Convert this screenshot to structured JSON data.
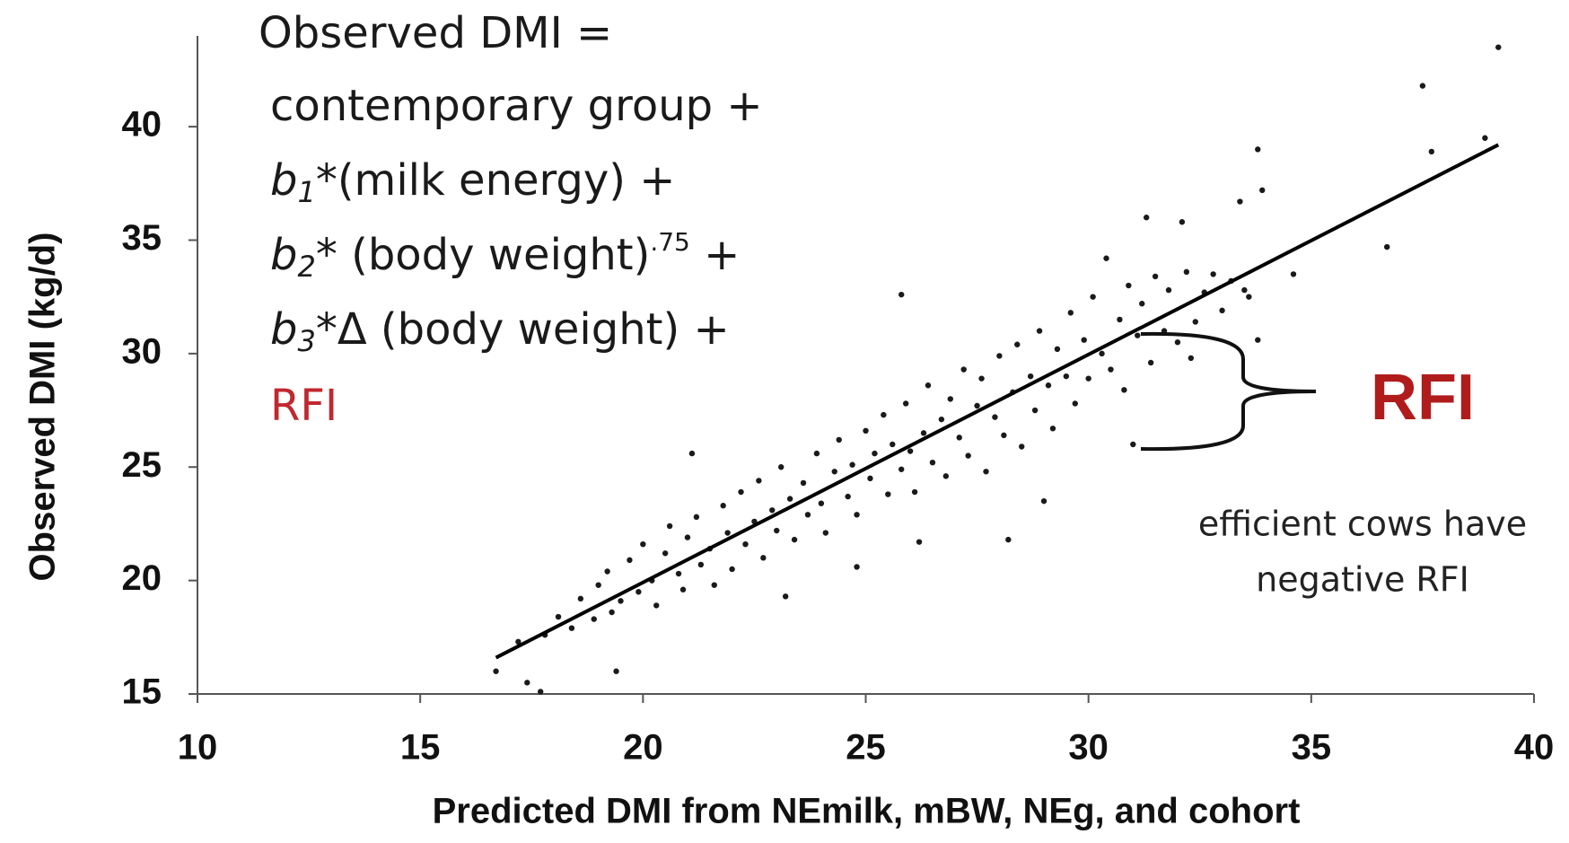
{
  "chart_data": {
    "type": "scatter",
    "x_label": "Predicted DMI from NEmilk, mBW, NEg, and cohort",
    "y_label": "Observed DMI (kg/d)",
    "xlim": [
      10,
      40
    ],
    "ylim": [
      15,
      44
    ],
    "xticks": [
      10,
      15,
      20,
      25,
      30,
      35,
      40
    ],
    "yticks": [
      15,
      20,
      25,
      30,
      35,
      40
    ],
    "points": {
      "color": "#1a1a1a",
      "x": [
        39.2,
        37.5,
        37.7,
        38.9,
        36.7,
        34.6,
        33.8,
        33.9,
        33.4,
        32.1,
        31.3,
        33.6,
        33.8,
        32.3,
        31.0,
        25.8,
        21.1,
        28.2,
        26.2,
        23.2,
        17.7,
        17.4,
        16.7,
        19.4,
        24.8,
        29.0,
        17.2,
        17.8,
        18.1,
        18.4,
        18.6,
        18.9,
        19.0,
        19.2,
        19.3,
        19.5,
        19.7,
        19.9,
        20.0,
        20.2,
        20.3,
        20.5,
        20.6,
        20.8,
        20.9,
        21.0,
        21.2,
        21.3,
        21.5,
        21.6,
        21.8,
        21.9,
        22.0,
        22.2,
        22.3,
        22.5,
        22.6,
        22.7,
        22.9,
        23.0,
        23.1,
        23.3,
        23.4,
        23.6,
        23.7,
        23.9,
        24.0,
        24.1,
        24.3,
        24.4,
        24.6,
        24.7,
        24.8,
        25.0,
        25.1,
        25.2,
        25.4,
        25.5,
        25.6,
        25.8,
        25.9,
        26.0,
        26.1,
        26.3,
        26.4,
        26.5,
        26.7,
        26.8,
        26.9,
        27.1,
        27.2,
        27.3,
        27.5,
        27.6,
        27.7,
        27.9,
        28.0,
        28.1,
        28.3,
        28.4,
        28.5,
        28.7,
        28.8,
        28.9,
        29.1,
        29.2,
        29.3,
        29.5,
        29.6,
        29.7,
        29.9,
        30.0,
        30.1,
        30.3,
        30.4,
        30.5,
        30.7,
        30.8,
        30.9,
        31.1,
        31.2,
        31.4,
        31.5,
        31.7,
        31.8,
        32.0,
        32.2,
        32.4,
        32.6,
        32.8,
        33.0,
        33.2,
        33.5
      ],
      "y": [
        43.5,
        41.8,
        38.9,
        39.5,
        34.7,
        33.5,
        39.0,
        37.2,
        36.7,
        35.8,
        36.0,
        32.5,
        30.6,
        29.8,
        26.0,
        32.6,
        25.6,
        21.8,
        21.7,
        19.3,
        15.1,
        15.5,
        16.0,
        16.0,
        20.6,
        23.5,
        17.3,
        17.6,
        18.4,
        17.9,
        19.2,
        18.3,
        19.8,
        20.4,
        18.6,
        19.1,
        20.9,
        19.5,
        21.6,
        20.0,
        18.9,
        21.2,
        22.4,
        20.3,
        19.6,
        21.9,
        22.8,
        20.7,
        21.4,
        19.8,
        23.3,
        22.1,
        20.5,
        23.9,
        21.6,
        22.6,
        24.4,
        21.0,
        23.1,
        22.2,
        25.0,
        23.6,
        21.8,
        24.3,
        22.9,
        25.6,
        23.4,
        22.1,
        24.8,
        26.2,
        23.7,
        25.1,
        22.9,
        26.6,
        24.5,
        25.6,
        27.3,
        23.8,
        26.0,
        24.9,
        27.8,
        25.7,
        23.9,
        26.5,
        28.6,
        25.2,
        27.1,
        24.6,
        28.0,
        26.3,
        29.3,
        25.5,
        27.7,
        28.9,
        24.8,
        27.2,
        29.9,
        26.4,
        28.3,
        30.4,
        25.9,
        29.0,
        27.5,
        31.0,
        28.6,
        26.7,
        30.2,
        29.0,
        31.8,
        27.8,
        30.6,
        28.9,
        32.5,
        30.0,
        34.2,
        29.3,
        31.5,
        28.4,
        33.0,
        30.8,
        32.2,
        29.6,
        33.4,
        31.0,
        32.8,
        30.5,
        33.6,
        31.4,
        32.7,
        33.5,
        31.9,
        33.2,
        32.8
      ]
    },
    "fit": {
      "color": "#000000",
      "x": [
        16.7,
        39.2
      ],
      "y": [
        16.6,
        39.2
      ]
    },
    "annotations": {
      "line1": "Observed DMI =",
      "line2": "contemporary group +",
      "line3": {
        "coef": "b",
        "sub": "1",
        "text": "*(milk energy) +"
      },
      "line4": {
        "coef": "b",
        "sub": "2",
        "text": "* (body weight)",
        "sup": ".75",
        "tail": " +"
      },
      "line5": {
        "coef": "b",
        "sub": "3",
        "text": "*Δ (body weight) +"
      },
      "line6": "RFI",
      "brace_label": "RFI",
      "note1": "efficient cows have",
      "note2": "negative RFI"
    }
  }
}
